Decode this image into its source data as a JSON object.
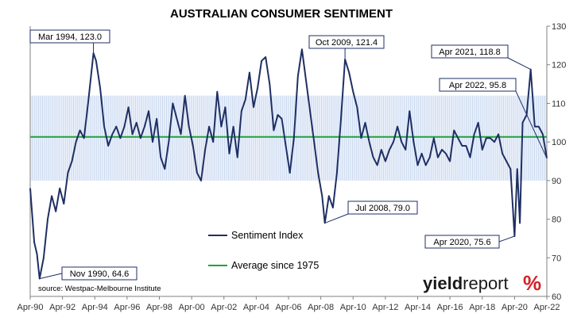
{
  "colors": {
    "series": "#1f2f63",
    "average": "#1fa23b",
    "band": "#c9d8ef",
    "logo_red": "#d4202a",
    "logo_green": "#2e9e3e"
  },
  "chart_data": {
    "type": "line",
    "title": "AUSTRALIAN CONSUMER SENTIMENT",
    "xlabel": "",
    "ylabel": "",
    "ylim": [
      60,
      130
    ],
    "y_ticks": [
      60,
      70,
      80,
      90,
      100,
      110,
      120,
      130
    ],
    "y_axis_side": "right",
    "x_ticks": [
      "Apr-90",
      "Apr-92",
      "Apr-94",
      "Apr-96",
      "Apr-98",
      "Apr-00",
      "Apr-02",
      "Apr-04",
      "Apr-06",
      "Apr-08",
      "Apr-10",
      "Apr-12",
      "Apr-14",
      "Apr-16",
      "Apr-18",
      "Apr-20",
      "Apr-22"
    ],
    "xlim": [
      "1990-04",
      "2022-04"
    ],
    "band": [
      90,
      112
    ],
    "series": [
      {
        "name": "Sentiment Index",
        "points": [
          [
            "1990-04",
            88
          ],
          [
            "1990-07",
            74
          ],
          [
            "1990-09",
            71
          ],
          [
            "1990-11",
            64.6
          ],
          [
            "1991-02",
            70
          ],
          [
            "1991-05",
            80
          ],
          [
            "1991-08",
            86
          ],
          [
            "1991-11",
            82
          ],
          [
            "1992-02",
            88
          ],
          [
            "1992-05",
            84
          ],
          [
            "1992-08",
            92
          ],
          [
            "1992-11",
            95
          ],
          [
            "1993-02",
            100
          ],
          [
            "1993-05",
            103
          ],
          [
            "1993-08",
            101
          ],
          [
            "1993-11",
            110
          ],
          [
            "1994-03",
            123
          ],
          [
            "1994-05",
            121
          ],
          [
            "1994-08",
            114
          ],
          [
            "1994-11",
            104
          ],
          [
            "1995-02",
            99
          ],
          [
            "1995-05",
            102
          ],
          [
            "1995-08",
            104
          ],
          [
            "1995-11",
            101
          ],
          [
            "1996-02",
            104
          ],
          [
            "1996-05",
            109
          ],
          [
            "1996-08",
            102
          ],
          [
            "1996-11",
            105
          ],
          [
            "1997-02",
            101
          ],
          [
            "1997-05",
            104
          ],
          [
            "1997-08",
            108
          ],
          [
            "1997-11",
            100
          ],
          [
            "1998-02",
            106
          ],
          [
            "1998-05",
            96
          ],
          [
            "1998-08",
            93
          ],
          [
            "1998-11",
            100
          ],
          [
            "1999-02",
            110
          ],
          [
            "1999-05",
            106
          ],
          [
            "1999-08",
            102
          ],
          [
            "1999-11",
            112
          ],
          [
            "2000-02",
            104
          ],
          [
            "2000-05",
            99
          ],
          [
            "2000-08",
            92
          ],
          [
            "2000-11",
            90
          ],
          [
            "2001-02",
            98
          ],
          [
            "2001-05",
            104
          ],
          [
            "2001-08",
            100
          ],
          [
            "2001-11",
            113
          ],
          [
            "2002-02",
            104
          ],
          [
            "2002-05",
            109
          ],
          [
            "2002-08",
            97
          ],
          [
            "2002-11",
            104
          ],
          [
            "2003-02",
            96
          ],
          [
            "2003-05",
            108
          ],
          [
            "2003-08",
            111
          ],
          [
            "2003-11",
            118
          ],
          [
            "2004-02",
            109
          ],
          [
            "2004-05",
            114
          ],
          [
            "2004-08",
            121
          ],
          [
            "2004-11",
            122
          ],
          [
            "2005-02",
            115
          ],
          [
            "2005-05",
            103
          ],
          [
            "2005-08",
            107
          ],
          [
            "2005-11",
            106
          ],
          [
            "2006-02",
            99
          ],
          [
            "2006-05",
            92
          ],
          [
            "2006-08",
            101
          ],
          [
            "2006-11",
            117
          ],
          [
            "2007-02",
            124
          ],
          [
            "2007-05",
            116
          ],
          [
            "2007-08",
            108
          ],
          [
            "2007-11",
            100
          ],
          [
            "2008-02",
            92
          ],
          [
            "2008-05",
            86
          ],
          [
            "2008-07",
            79
          ],
          [
            "2008-10",
            86
          ],
          [
            "2009-01",
            83
          ],
          [
            "2009-04",
            92
          ],
          [
            "2009-07",
            106
          ],
          [
            "2009-10",
            121.4
          ],
          [
            "2010-01",
            118
          ],
          [
            "2010-04",
            113
          ],
          [
            "2010-07",
            109
          ],
          [
            "2010-10",
            101
          ],
          [
            "2011-01",
            105
          ],
          [
            "2011-04",
            100
          ],
          [
            "2011-07",
            96
          ],
          [
            "2011-10",
            94
          ],
          [
            "2012-01",
            98
          ],
          [
            "2012-04",
            95
          ],
          [
            "2012-07",
            98
          ],
          [
            "2012-10",
            100
          ],
          [
            "2013-01",
            104
          ],
          [
            "2013-04",
            100
          ],
          [
            "2013-07",
            98
          ],
          [
            "2013-10",
            108
          ],
          [
            "2014-01",
            100
          ],
          [
            "2014-04",
            94
          ],
          [
            "2014-07",
            97
          ],
          [
            "2014-10",
            94
          ],
          [
            "2015-01",
            96
          ],
          [
            "2015-04",
            101
          ],
          [
            "2015-07",
            96
          ],
          [
            "2015-10",
            98
          ],
          [
            "2016-01",
            97
          ],
          [
            "2016-04",
            95
          ],
          [
            "2016-07",
            103
          ],
          [
            "2016-10",
            101
          ],
          [
            "2017-01",
            99
          ],
          [
            "2017-04",
            99
          ],
          [
            "2017-07",
            96
          ],
          [
            "2017-10",
            102
          ],
          [
            "2018-01",
            105
          ],
          [
            "2018-04",
            98
          ],
          [
            "2018-07",
            101
          ],
          [
            "2018-10",
            101
          ],
          [
            "2019-01",
            100
          ],
          [
            "2019-04",
            102
          ],
          [
            "2019-07",
            97
          ],
          [
            "2019-10",
            95
          ],
          [
            "2020-01",
            93
          ],
          [
            "2020-04",
            75.6
          ],
          [
            "2020-06",
            93
          ],
          [
            "2020-08",
            79
          ],
          [
            "2020-10",
            105
          ],
          [
            "2021-01",
            107
          ],
          [
            "2021-04",
            118.8
          ],
          [
            "2021-07",
            104
          ],
          [
            "2021-10",
            104
          ],
          [
            "2022-01",
            102
          ],
          [
            "2022-04",
            95.8
          ]
        ]
      },
      {
        "name": "Average since 1975",
        "constant": 101.3
      }
    ],
    "legend_position": "bottom-center",
    "annotations": [
      {
        "label": "Mar 1994, 123.0",
        "x": "1994-03",
        "y": 123.0
      },
      {
        "label": "Nov 1990, 64.6",
        "x": "1990-11",
        "y": 64.6
      },
      {
        "label": "Oct 2009, 121.4",
        "x": "2009-10",
        "y": 121.4
      },
      {
        "label": "Jul 2008, 79.0",
        "x": "2008-07",
        "y": 79.0
      },
      {
        "label": "Apr 2021, 118.8",
        "x": "2021-04",
        "y": 118.8
      },
      {
        "label": "Apr 2022, 95.8",
        "x": "2022-04",
        "y": 95.8
      },
      {
        "label": "Apr 2020, 75.6",
        "x": "2020-04",
        "y": 75.6
      }
    ],
    "source": "source: Westpac-Melbourne Institute"
  },
  "logo": {
    "part1": "yield",
    "part2": "report",
    "pct": "%"
  }
}
